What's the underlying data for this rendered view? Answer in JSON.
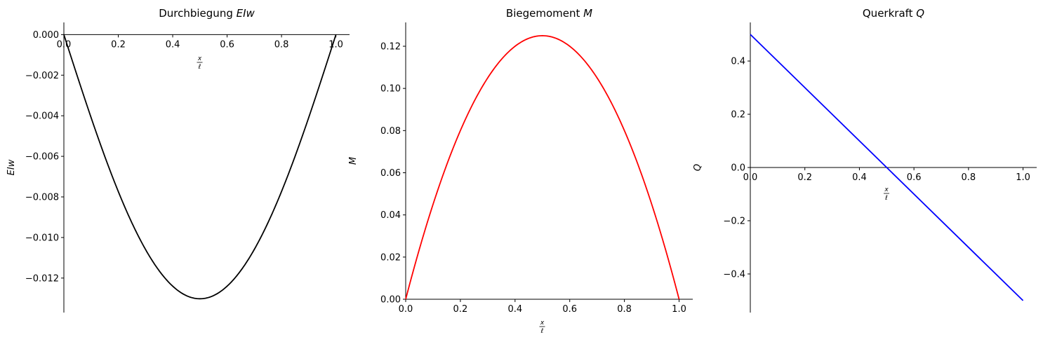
{
  "chart_data": [
    {
      "type": "line",
      "title": "Durchbiegung EIw",
      "title_text": "Durchbiegung ",
      "title_symbol": "EIw",
      "xlabel": {
        "numerator": "x",
        "denominator": "ℓ"
      },
      "ylabel": "EIw",
      "xlim": [
        0.0,
        1.05
      ],
      "ylim": [
        -0.0137,
        0.0006
      ],
      "xticks": [
        0.0,
        0.2,
        0.4,
        0.6,
        0.8,
        1.0
      ],
      "xtick_labels": [
        "0.0",
        "0.2",
        "0.4",
        "0.6",
        "0.8",
        "1.0"
      ],
      "yticks": [
        0.0,
        -0.002,
        -0.004,
        -0.006,
        -0.008,
        -0.01,
        -0.012
      ],
      "ytick_labels": [
        "0.000",
        "−0.002",
        "−0.004",
        "−0.006",
        "−0.008",
        "−0.010",
        "−0.012"
      ],
      "grid": false,
      "series": [
        {
          "color": "#000000",
          "x": [
            0.0,
            0.05,
            0.1,
            0.15,
            0.2,
            0.25,
            0.3,
            0.35,
            0.4,
            0.45,
            0.5,
            0.55,
            0.6,
            0.65,
            0.7,
            0.75,
            0.8,
            0.85,
            0.9,
            0.95,
            1.0
          ],
          "y": [
            0.0,
            -0.00207,
            -0.00407,
            -0.0059,
            -0.00752,
            -0.00889,
            -0.01,
            -0.01085,
            -0.01144,
            -0.0118,
            -0.01302,
            -0.0118,
            -0.01144,
            -0.01085,
            -0.01,
            -0.00889,
            -0.00752,
            -0.0059,
            -0.00407,
            -0.00207,
            0.0
          ]
        }
      ]
    },
    {
      "type": "line",
      "title": "Biegemoment M",
      "title_text": "Biegemoment ",
      "title_symbol": "M",
      "xlabel": {
        "numerator": "x",
        "denominator": "ℓ"
      },
      "ylabel": "M",
      "xlim": [
        0.0,
        1.05
      ],
      "ylim": [
        0.0,
        0.1313
      ],
      "xticks": [
        0.0,
        0.2,
        0.4,
        0.6,
        0.8,
        1.0
      ],
      "xtick_labels": [
        "0.0",
        "0.2",
        "0.4",
        "0.6",
        "0.8",
        "1.0"
      ],
      "yticks": [
        0.0,
        0.02,
        0.04,
        0.06,
        0.08,
        0.1,
        0.12
      ],
      "ytick_labels": [
        "0.00",
        "0.02",
        "0.04",
        "0.06",
        "0.08",
        "0.10",
        "0.12"
      ],
      "grid": false,
      "series": [
        {
          "color": "#ff0000",
          "x": [
            0.0,
            0.05,
            0.1,
            0.15,
            0.2,
            0.25,
            0.3,
            0.35,
            0.4,
            0.45,
            0.5,
            0.55,
            0.6,
            0.65,
            0.7,
            0.75,
            0.8,
            0.85,
            0.9,
            0.95,
            1.0
          ],
          "y": [
            0.0,
            0.02375,
            0.045,
            0.06375,
            0.08,
            0.09375,
            0.105,
            0.11375,
            0.12,
            0.12375,
            0.125,
            0.12375,
            0.12,
            0.11375,
            0.105,
            0.09375,
            0.08,
            0.06375,
            0.045,
            0.02375,
            0.0
          ]
        }
      ]
    },
    {
      "type": "line",
      "title": "Querkraft Q",
      "title_text": "Querkraft ",
      "title_symbol": "Q",
      "xlabel": {
        "numerator": "x",
        "denominator": "ℓ"
      },
      "ylabel": "Q",
      "xlim": [
        0.0,
        1.05
      ],
      "ylim": [
        -0.545,
        0.545
      ],
      "xticks": [
        0.0,
        0.2,
        0.4,
        0.6,
        0.8,
        1.0
      ],
      "xtick_labels": [
        "0.0",
        "0.2",
        "0.4",
        "0.6",
        "0.8",
        "1.0"
      ],
      "yticks": [
        0.4,
        0.2,
        0.0,
        -0.2,
        -0.4
      ],
      "ytick_labels": [
        "0.4",
        "0.2",
        "0.0",
        "−0.2",
        "−0.4"
      ],
      "grid": false,
      "series": [
        {
          "color": "#0000ff",
          "x": [
            0.0,
            1.0
          ],
          "y": [
            0.5,
            -0.5
          ]
        }
      ]
    }
  ]
}
